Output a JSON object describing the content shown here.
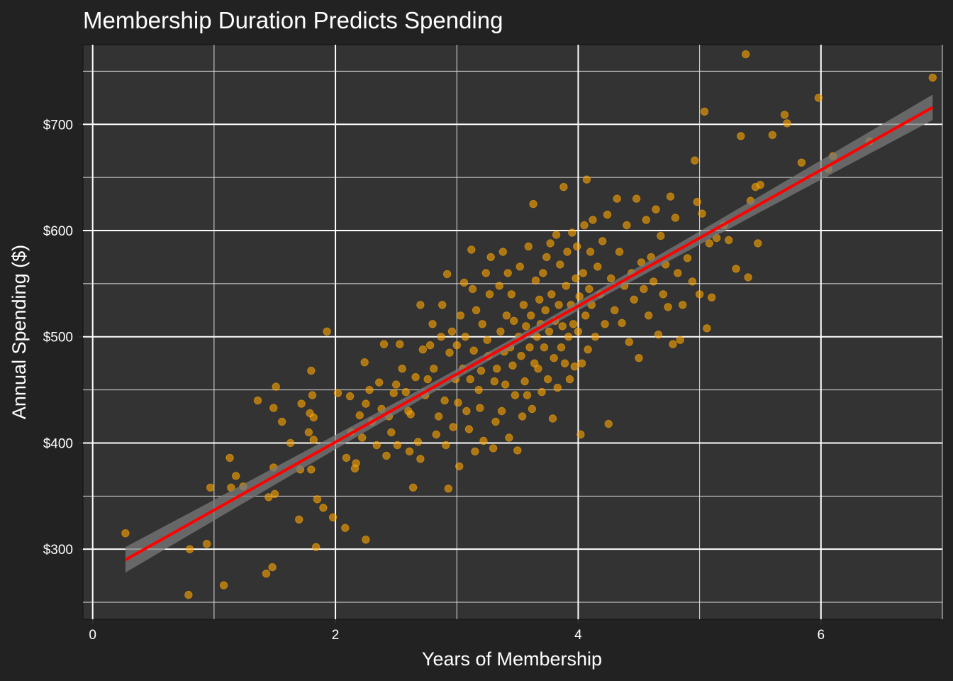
{
  "chart_data": {
    "type": "scatter",
    "title": "Membership Duration Predicts Spending",
    "xlabel": "Years of Membership",
    "ylabel": "Annual Spending ($)",
    "xlim": [
      -0.08,
      7.0
    ],
    "ylim": [
      234,
      775
    ],
    "x_ticks": [
      0,
      2,
      4,
      6
    ],
    "x_tick_labels": [
      "0",
      "2",
      "4",
      "6"
    ],
    "y_ticks": [
      300,
      400,
      500,
      600,
      700
    ],
    "y_tick_labels": [
      "$300",
      "$400",
      "$500",
      "$600",
      "$700"
    ],
    "grid": true,
    "point_color": "#FFA500",
    "line_color": "#FF0000",
    "band_color": "#7a7a7a",
    "panel_color": "#333333",
    "background_color": "#222222",
    "trend_line": {
      "x0": 0.27,
      "y0": 290,
      "x1": 6.92,
      "y1": 716,
      "se_at_ends": 12,
      "se_at_center": 4
    },
    "points": [
      [
        0.27,
        315
      ],
      [
        0.79,
        257
      ],
      [
        0.8,
        300
      ],
      [
        0.94,
        305
      ],
      [
        0.97,
        358
      ],
      [
        1.08,
        266
      ],
      [
        1.13,
        386
      ],
      [
        1.14,
        358
      ],
      [
        1.18,
        369
      ],
      [
        1.24,
        359
      ],
      [
        1.36,
        440
      ],
      [
        1.43,
        277
      ],
      [
        1.45,
        349
      ],
      [
        1.48,
        283
      ],
      [
        1.49,
        433
      ],
      [
        1.49,
        377
      ],
      [
        1.5,
        352
      ],
      [
        1.51,
        453
      ],
      [
        1.56,
        420
      ],
      [
        1.63,
        400
      ],
      [
        1.7,
        328
      ],
      [
        1.71,
        375
      ],
      [
        1.72,
        437
      ],
      [
        1.78,
        410
      ],
      [
        1.79,
        428
      ],
      [
        1.8,
        468
      ],
      [
        1.8,
        375
      ],
      [
        1.81,
        445
      ],
      [
        1.82,
        424
      ],
      [
        1.82,
        403
      ],
      [
        1.84,
        302
      ],
      [
        1.85,
        347
      ],
      [
        1.9,
        339
      ],
      [
        1.93,
        505
      ],
      [
        1.98,
        330
      ],
      [
        2.02,
        447
      ],
      [
        2.08,
        320
      ],
      [
        2.09,
        386
      ],
      [
        2.12,
        444
      ],
      [
        2.13,
        410
      ],
      [
        2.16,
        376
      ],
      [
        2.17,
        381
      ],
      [
        2.2,
        426
      ],
      [
        2.22,
        405
      ],
      [
        2.24,
        476
      ],
      [
        2.25,
        437
      ],
      [
        2.25,
        309
      ],
      [
        2.28,
        450
      ],
      [
        2.3,
        420
      ],
      [
        2.34,
        398
      ],
      [
        2.36,
        457
      ],
      [
        2.38,
        432
      ],
      [
        2.4,
        493
      ],
      [
        2.42,
        388
      ],
      [
        2.44,
        425
      ],
      [
        2.46,
        410
      ],
      [
        2.48,
        447
      ],
      [
        2.5,
        455
      ],
      [
        2.51,
        398
      ],
      [
        2.53,
        493
      ],
      [
        2.55,
        470
      ],
      [
        2.58,
        448
      ],
      [
        2.6,
        430
      ],
      [
        2.61,
        392
      ],
      [
        2.62,
        427
      ],
      [
        2.64,
        358
      ],
      [
        2.66,
        462
      ],
      [
        2.68,
        401
      ],
      [
        2.7,
        385
      ],
      [
        2.7,
        530
      ],
      [
        2.72,
        488
      ],
      [
        2.74,
        445
      ],
      [
        2.76,
        460
      ],
      [
        2.78,
        492
      ],
      [
        2.8,
        512
      ],
      [
        2.81,
        470
      ],
      [
        2.83,
        408
      ],
      [
        2.85,
        425
      ],
      [
        2.87,
        500
      ],
      [
        2.88,
        530
      ],
      [
        2.9,
        440
      ],
      [
        2.91,
        398
      ],
      [
        2.92,
        559
      ],
      [
        2.93,
        357
      ],
      [
        2.94,
        485
      ],
      [
        2.96,
        505
      ],
      [
        2.97,
        415
      ],
      [
        2.99,
        460
      ],
      [
        3.0,
        492
      ],
      [
        3.01,
        438
      ],
      [
        3.02,
        378
      ],
      [
        3.03,
        520
      ],
      [
        3.05,
        470
      ],
      [
        3.06,
        551
      ],
      [
        3.07,
        500
      ],
      [
        3.08,
        430
      ],
      [
        3.1,
        413
      ],
      [
        3.11,
        460
      ],
      [
        3.12,
        582
      ],
      [
        3.13,
        545
      ],
      [
        3.14,
        487
      ],
      [
        3.15,
        392
      ],
      [
        3.16,
        525
      ],
      [
        3.18,
        450
      ],
      [
        3.19,
        433
      ],
      [
        3.2,
        468
      ],
      [
        3.21,
        512
      ],
      [
        3.22,
        402
      ],
      [
        3.24,
        560
      ],
      [
        3.25,
        497
      ],
      [
        3.26,
        482
      ],
      [
        3.27,
        540
      ],
      [
        3.28,
        575
      ],
      [
        3.3,
        395
      ],
      [
        3.31,
        458
      ],
      [
        3.32,
        420
      ],
      [
        3.33,
        470
      ],
      [
        3.35,
        548
      ],
      [
        3.36,
        505
      ],
      [
        3.37,
        430
      ],
      [
        3.38,
        580
      ],
      [
        3.39,
        486
      ],
      [
        3.4,
        455
      ],
      [
        3.41,
        520
      ],
      [
        3.42,
        560
      ],
      [
        3.43,
        405
      ],
      [
        3.44,
        490
      ],
      [
        3.45,
        540
      ],
      [
        3.46,
        473
      ],
      [
        3.47,
        515
      ],
      [
        3.48,
        445
      ],
      [
        3.5,
        393
      ],
      [
        3.51,
        500
      ],
      [
        3.52,
        566
      ],
      [
        3.53,
        482
      ],
      [
        3.54,
        425
      ],
      [
        3.55,
        530
      ],
      [
        3.56,
        458
      ],
      [
        3.57,
        510
      ],
      [
        3.58,
        445
      ],
      [
        3.59,
        585
      ],
      [
        3.6,
        490
      ],
      [
        3.61,
        520
      ],
      [
        3.62,
        432
      ],
      [
        3.63,
        625
      ],
      [
        3.64,
        475
      ],
      [
        3.65,
        553
      ],
      [
        3.66,
        500
      ],
      [
        3.67,
        470
      ],
      [
        3.68,
        535
      ],
      [
        3.69,
        512
      ],
      [
        3.7,
        448
      ],
      [
        3.71,
        560
      ],
      [
        3.72,
        490
      ],
      [
        3.73,
        525
      ],
      [
        3.74,
        575
      ],
      [
        3.75,
        460
      ],
      [
        3.76,
        505
      ],
      [
        3.77,
        588
      ],
      [
        3.78,
        540
      ],
      [
        3.79,
        423
      ],
      [
        3.8,
        480
      ],
      [
        3.81,
        515
      ],
      [
        3.82,
        596
      ],
      [
        3.83,
        452
      ],
      [
        3.84,
        530
      ],
      [
        3.85,
        568
      ],
      [
        3.86,
        490
      ],
      [
        3.87,
        510
      ],
      [
        3.88,
        641
      ],
      [
        3.89,
        475
      ],
      [
        3.9,
        548
      ],
      [
        3.91,
        580
      ],
      [
        3.92,
        500
      ],
      [
        3.93,
        460
      ],
      [
        3.94,
        530
      ],
      [
        3.95,
        598
      ],
      [
        3.96,
        512
      ],
      [
        3.97,
        472
      ],
      [
        3.98,
        555
      ],
      [
        3.99,
        585
      ],
      [
        4.0,
        505
      ],
      [
        4.01,
        538
      ],
      [
        4.02,
        408
      ],
      [
        4.03,
        475
      ],
      [
        4.04,
        560
      ],
      [
        4.05,
        605
      ],
      [
        4.06,
        520
      ],
      [
        4.07,
        648
      ],
      [
        4.08,
        488
      ],
      [
        4.09,
        545
      ],
      [
        4.1,
        580
      ],
      [
        4.11,
        530
      ],
      [
        4.12,
        610
      ],
      [
        4.14,
        500
      ],
      [
        4.16,
        566
      ],
      [
        4.18,
        540
      ],
      [
        4.2,
        590
      ],
      [
        4.22,
        512
      ],
      [
        4.24,
        615
      ],
      [
        4.25,
        418
      ],
      [
        4.27,
        555
      ],
      [
        4.3,
        525
      ],
      [
        4.32,
        630
      ],
      [
        4.34,
        580
      ],
      [
        4.36,
        513
      ],
      [
        4.38,
        548
      ],
      [
        4.4,
        605
      ],
      [
        4.42,
        495
      ],
      [
        4.44,
        560
      ],
      [
        4.46,
        535
      ],
      [
        4.48,
        630
      ],
      [
        4.5,
        480
      ],
      [
        4.52,
        570
      ],
      [
        4.54,
        545
      ],
      [
        4.56,
        610
      ],
      [
        4.58,
        520
      ],
      [
        4.6,
        575
      ],
      [
        4.62,
        552
      ],
      [
        4.64,
        620
      ],
      [
        4.66,
        502
      ],
      [
        4.68,
        595
      ],
      [
        4.7,
        540
      ],
      [
        4.72,
        568
      ],
      [
        4.74,
        528
      ],
      [
        4.76,
        632
      ],
      [
        4.78,
        493
      ],
      [
        4.8,
        612
      ],
      [
        4.82,
        560
      ],
      [
        4.84,
        497
      ],
      [
        4.86,
        530
      ],
      [
        4.9,
        574
      ],
      [
        4.94,
        552
      ],
      [
        4.96,
        666
      ],
      [
        4.98,
        627
      ],
      [
        5.0,
        540
      ],
      [
        5.02,
        616
      ],
      [
        5.04,
        712
      ],
      [
        5.06,
        508
      ],
      [
        5.08,
        588
      ],
      [
        5.1,
        537
      ],
      [
        5.14,
        593
      ],
      [
        5.2,
        605
      ],
      [
        5.24,
        591
      ],
      [
        5.3,
        564
      ],
      [
        5.34,
        689
      ],
      [
        5.38,
        766
      ],
      [
        5.4,
        556
      ],
      [
        5.42,
        628
      ],
      [
        5.46,
        641
      ],
      [
        5.48,
        588
      ],
      [
        5.5,
        643
      ],
      [
        5.6,
        690
      ],
      [
        5.7,
        709
      ],
      [
        5.72,
        701
      ],
      [
        5.84,
        664
      ],
      [
        5.98,
        725
      ],
      [
        6.06,
        658
      ],
      [
        6.1,
        670
      ],
      [
        6.4,
        684
      ],
      [
        6.92,
        744
      ]
    ]
  }
}
